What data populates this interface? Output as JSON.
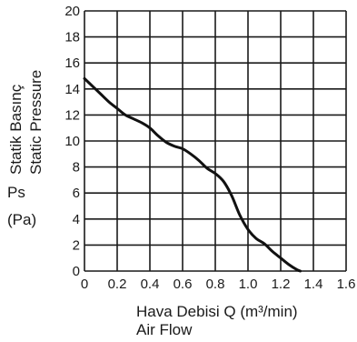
{
  "chart_data": {
    "type": "line",
    "ylabel_tr": "Statik Basınç",
    "ylabel_en": "Static Pressure",
    "ysymbol": "Ps",
    "yunit": "(Pa)",
    "xlabel_tr": "Hava Debisi Q (m³/min)",
    "xlabel_en": "Air Flow",
    "xlim": [
      0,
      1.6
    ],
    "ylim": [
      0,
      20
    ],
    "xticks": [
      "0",
      "0.2",
      "0.4",
      "0.6",
      "0.8",
      "1.0",
      "1.2",
      "1.4",
      "1.6"
    ],
    "yticks": [
      "0",
      "2",
      "4",
      "6",
      "8",
      "10",
      "12",
      "14",
      "16",
      "18",
      "20"
    ],
    "grid": true,
    "series": [
      {
        "x": [
          0,
          0.05,
          0.1,
          0.15,
          0.2,
          0.25,
          0.3,
          0.35,
          0.4,
          0.45,
          0.5,
          0.55,
          0.6,
          0.65,
          0.7,
          0.75,
          0.8,
          0.85,
          0.9,
          0.95,
          1.0,
          1.05,
          1.1,
          1.15,
          1.2,
          1.25,
          1.3,
          1.32
        ],
        "y": [
          14.8,
          14.2,
          13.6,
          13.0,
          12.5,
          12.0,
          11.7,
          11.4,
          11.0,
          10.4,
          9.9,
          9.6,
          9.4,
          9.0,
          8.5,
          7.9,
          7.5,
          6.9,
          5.8,
          4.3,
          3.2,
          2.5,
          2.1,
          1.5,
          1.0,
          0.5,
          0.1,
          0
        ]
      }
    ]
  }
}
